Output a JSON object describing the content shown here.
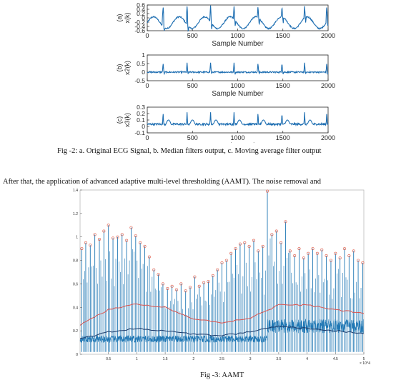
{
  "figure2": {
    "caption": "Fig -2: a. Original ECG Signal, b. Median filters output, c. Moving average filter output",
    "line_color": "#1f6fb2",
    "chart_data": [
      {
        "type": "line",
        "panel_label": "(a)",
        "ylabel": "x(k)",
        "xlabel": "Sample Number",
        "xlim": [
          0,
          2000
        ],
        "ylim": [
          -0.6,
          0.6
        ],
        "x_ticks": [
          0,
          500,
          1000,
          1500,
          2000
        ],
        "y_ticks": [
          "-0.6",
          "-0.4",
          "-0.2",
          "0",
          "0.2",
          "0.4",
          "0.6"
        ],
        "beat_samples": [
          175,
          440,
          700,
          960,
          1225,
          1490,
          1740,
          1985
        ],
        "peak_value": 0.55,
        "baseline_range": [
          -0.5,
          0.05
        ]
      },
      {
        "type": "line",
        "panel_label": "(b)",
        "ylabel": "x2(k)",
        "xlabel": "Sample Number",
        "xlim": [
          0,
          2000
        ],
        "ylim": [
          -0.5,
          1
        ],
        "x_ticks": [
          0,
          500,
          1000,
          1500,
          2000
        ],
        "y_ticks": [
          "-0.5",
          "0",
          "0.5",
          "1"
        ],
        "beat_samples": [
          175,
          440,
          700,
          960,
          1225,
          1490,
          1740,
          1985
        ],
        "peak_value": 0.55,
        "baseline_range": [
          -0.1,
          0.1
        ]
      },
      {
        "type": "line",
        "panel_label": "(c)",
        "ylabel": "x3(k)",
        "xlabel": "Sample Number",
        "xlim": [
          0,
          2000
        ],
        "ylim": [
          -0.1,
          0.3
        ],
        "x_ticks": [
          0,
          500,
          1000,
          1500,
          2000
        ],
        "y_ticks": [
          "-0.1",
          "0",
          "0.1",
          "0.2",
          "0.3"
        ],
        "beat_samples": [
          175,
          440,
          700,
          960,
          1225,
          1490,
          1740,
          1985
        ],
        "peak_value": 0.22,
        "baseline_range": [
          0.02,
          0.05
        ]
      }
    ]
  },
  "body_text": "After that, the application of advanced adaptive multi-level thresholding (AAMT). The noise removal and",
  "figure3": {
    "caption": "Fig -3: AAMT",
    "colors": {
      "signal": "#1f77b4",
      "upper_threshold": "#d9534f",
      "lower_threshold": "#1a3a6b",
      "peak_marker": "#e05a47"
    },
    "chart_data": {
      "type": "line",
      "xlim": [
        0,
        5
      ],
      "ylim": [
        0,
        1.4
      ],
      "x_ticks": [
        "0.5",
        "1",
        "1.5",
        "2",
        "2.5",
        "3",
        "3.5",
        "4",
        "4.5",
        "5"
      ],
      "y_ticks": [
        "0",
        "0.2",
        "0.4",
        "0.6",
        "0.8",
        "1",
        "1.2",
        "1.4"
      ],
      "x_exponent": "× 10^4",
      "peak_x": [
        0.03,
        0.1,
        0.18,
        0.26,
        0.34,
        0.42,
        0.5,
        0.58,
        0.66,
        0.74,
        0.82,
        0.9,
        0.98,
        1.06,
        1.14,
        1.22,
        1.3,
        1.38,
        1.46,
        1.54,
        1.62,
        1.7,
        1.78,
        1.86,
        1.94,
        2.02,
        2.1,
        2.18,
        2.26,
        2.34,
        2.42,
        2.5,
        2.58,
        2.66,
        2.74,
        2.82,
        2.9,
        2.98,
        3.06,
        3.14,
        3.22,
        3.3,
        3.38,
        3.46,
        3.54,
        3.62,
        3.7,
        3.78,
        3.86,
        3.94,
        4.02,
        4.1,
        4.18,
        4.26,
        4.34,
        4.42,
        4.5,
        4.58,
        4.66,
        4.74,
        4.82,
        4.9,
        4.98
      ],
      "peak_y": [
        0.9,
        0.95,
        0.93,
        1.02,
        0.98,
        1.05,
        1.1,
        0.99,
        1.0,
        1.02,
        0.97,
        1.08,
        1.01,
        0.95,
        0.92,
        0.83,
        0.72,
        0.68,
        0.6,
        0.56,
        0.58,
        0.55,
        0.6,
        0.54,
        0.57,
        0.66,
        0.58,
        0.61,
        0.62,
        0.67,
        0.72,
        0.78,
        0.8,
        0.86,
        0.9,
        0.94,
        0.95,
        0.92,
        0.97,
        0.88,
        0.92,
        1.39,
        1.02,
        1.05,
        0.95,
        1.13,
        0.88,
        0.84,
        0.9,
        0.82,
        0.86,
        0.9,
        0.86,
        0.89,
        0.84,
        0.8,
        0.86,
        0.82,
        0.9,
        0.84,
        0.88,
        0.8,
        0.78
      ],
      "series": [
        {
          "x": [
            0.0,
            0.5,
            1.0,
            1.5,
            2.0,
            2.5,
            3.0,
            3.5,
            4.0,
            4.5,
            5.0
          ],
          "values": [
            0.25,
            0.38,
            0.43,
            0.4,
            0.3,
            0.27,
            0.31,
            0.42,
            0.42,
            0.38,
            0.35
          ]
        },
        {
          "x": [
            0.0,
            0.5,
            1.0,
            1.5,
            2.0,
            2.5,
            3.0,
            3.5,
            4.0,
            4.5,
            5.0
          ],
          "values": [
            0.13,
            0.19,
            0.22,
            0.2,
            0.17,
            0.16,
            0.19,
            0.24,
            0.22,
            0.2,
            0.18
          ]
        }
      ]
    }
  }
}
